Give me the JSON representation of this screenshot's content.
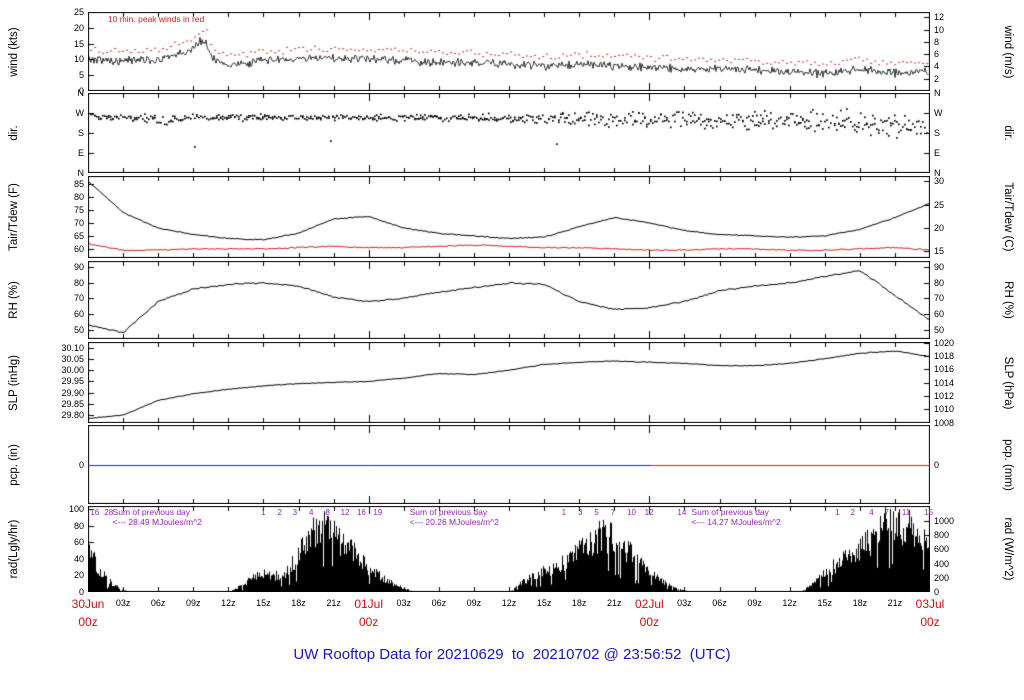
{
  "title": {
    "text": "UW Rooftop Data for 20210629  to  20210702 @ 23:56:52  (UTC)"
  },
  "colors": {
    "title": "#1717bb",
    "axis": "#000000",
    "major_x_label": "#cc1111",
    "annotation_purple": "#9922bb",
    "peak_wind_red": "#cc2222",
    "precip_blue": "#2222cc",
    "precip_red": "#cc2222"
  },
  "x_axis": {
    "hours_total": 72,
    "minor_tick_every_h": 3,
    "minor_labels": [
      {
        "t": "03z",
        "h": 3
      },
      {
        "t": "06z",
        "h": 6
      },
      {
        "t": "09z",
        "h": 9
      },
      {
        "t": "12z",
        "h": 12
      },
      {
        "t": "15z",
        "h": 15
      },
      {
        "t": "18z",
        "h": 18
      },
      {
        "t": "21z",
        "h": 21
      },
      {
        "t": "03z",
        "h": 27
      },
      {
        "t": "06z",
        "h": 30
      },
      {
        "t": "09z",
        "h": 33
      },
      {
        "t": "12z",
        "h": 36
      },
      {
        "t": "15z",
        "h": 39
      },
      {
        "t": "18z",
        "h": 42
      },
      {
        "t": "21z",
        "h": 45
      },
      {
        "t": "03z",
        "h": 51
      },
      {
        "t": "06z",
        "h": 54
      },
      {
        "t": "09z",
        "h": 57
      },
      {
        "t": "12z",
        "h": 60
      },
      {
        "t": "15z",
        "h": 63
      },
      {
        "t": "18z",
        "h": 66
      },
      {
        "t": "21z",
        "h": 69
      }
    ],
    "major_labels": [
      {
        "l1": "30Jun",
        "l2": "00z",
        "h": 0
      },
      {
        "l1": "01Jul",
        "l2": "00z",
        "h": 24
      },
      {
        "l1": "02Jul",
        "l2": "00z",
        "h": 48
      },
      {
        "l1": "03Jul",
        "l2": "00z",
        "h": 72
      }
    ]
  },
  "chart_data": {
    "type": "line",
    "x_range_hours": [
      0,
      72
    ],
    "x_start": "2021-06-30 00z",
    "x_end": "2021-07-03 00z",
    "panels": [
      {
        "id": "wind",
        "top": 12,
        "height": 79,
        "left_label": "wind (kts)",
        "right_label": "wind (m/s)",
        "ylim": [
          0,
          25
        ],
        "left_ticks": [
          {
            "pos": 25,
            "label": "25"
          },
          {
            "pos": 20,
            "label": "20"
          },
          {
            "pos": 15,
            "label": "15"
          },
          {
            "pos": 10,
            "label": "10"
          },
          {
            "pos": 5,
            "label": "5"
          },
          {
            "pos": 0,
            "label": "0"
          }
        ],
        "right_ticks": [
          {
            "pos": 23.33,
            "label": "12"
          },
          {
            "pos": 19.44,
            "label": "10"
          },
          {
            "pos": 15.55,
            "label": "8"
          },
          {
            "pos": 11.66,
            "label": "6"
          },
          {
            "pos": 7.78,
            "label": "4"
          },
          {
            "pos": 3.89,
            "label": "2"
          }
        ],
        "annotations": [
          {
            "text": "10 min. peak winds in red",
            "h": 1.7,
            "color": "#cc2222"
          }
        ],
        "series": [
          {
            "name": "wind-avg",
            "type": "noisy_line",
            "color": "#000000",
            "step_h": 3,
            "noise": 1.6,
            "values": [
              10,
              9.5,
              10,
              13,
              8,
              9.5,
              10,
              10.5,
              10,
              9.5,
              9,
              9,
              8.5,
              8,
              8.5,
              8,
              7.5,
              7,
              7,
              6.5,
              6,
              5.5,
              7,
              5.5,
              6.5
            ],
            "spike": {
              "h": 9.8,
              "w": 0.5,
              "amp": 6
            }
          },
          {
            "name": "wind-peak",
            "type": "dash_line",
            "color": "#cc2222",
            "step_h": 3,
            "noise": 1.2,
            "values": [
              13,
              12.5,
              13,
              16.5,
              11,
              12.5,
              13,
              13.5,
              13,
              12.5,
              12,
              12,
              11.5,
              11,
              11.5,
              11,
              10.5,
              10,
              10,
              9.5,
              9,
              8.5,
              10,
              8.5,
              9.5
            ],
            "spike": {
              "h": 9.8,
              "w": 0.5,
              "amp": 6
            }
          }
        ]
      },
      {
        "id": "dir",
        "top": 93,
        "height": 80,
        "left_label": "dir.",
        "right_label": "dir.",
        "ylim": [
          0,
          360
        ],
        "left_ticks": [
          {
            "pos": 360,
            "label": "N"
          },
          {
            "pos": 270,
            "label": "W"
          },
          {
            "pos": 180,
            "label": "S"
          },
          {
            "pos": 90,
            "label": "E"
          },
          {
            "pos": 0,
            "label": "N"
          }
        ],
        "right_ticks": [
          {
            "pos": 360,
            "label": "N"
          },
          {
            "pos": 270,
            "label": "W"
          },
          {
            "pos": 180,
            "label": "S"
          },
          {
            "pos": 90,
            "label": "E"
          },
          {
            "pos": 0,
            "label": "N"
          }
        ],
        "annotations": [],
        "series": [
          {
            "name": "wind-direction",
            "type": "scatter",
            "color": "#000000",
            "step_h": 3,
            "values": [
              258,
              255,
              238,
              256,
              252,
              250,
              254,
              252,
              250,
              253,
              252,
              250,
              253,
              250,
              248,
              242,
              246,
              244,
              240,
              236,
              240,
              235,
              230,
              215,
              205
            ],
            "spread": [
              10,
              10,
              20,
              8,
              10,
              12,
              10,
              8,
              10,
              10,
              10,
              12,
              14,
              15,
              20,
              28,
              24,
              25,
              25,
              30,
              30,
              35,
              40,
              45,
              50
            ]
          }
        ]
      },
      {
        "id": "temp",
        "top": 176,
        "height": 82,
        "left_label": "Tair/Tdew (F)",
        "right_label": "Tair/Tdew (C)",
        "ylim": [
          56.5,
          88
        ],
        "left_ticks": [
          {
            "pos": 85,
            "label": "85"
          },
          {
            "pos": 80,
            "label": "80"
          },
          {
            "pos": 75,
            "label": "75"
          },
          {
            "pos": 70,
            "label": "70"
          },
          {
            "pos": 65,
            "label": "65"
          },
          {
            "pos": 60,
            "label": "60"
          }
        ],
        "right_ticks": [
          {
            "pos": 86,
            "label": "30"
          },
          {
            "pos": 77,
            "label": "25"
          },
          {
            "pos": 68,
            "label": "20"
          },
          {
            "pos": 59,
            "label": "15"
          }
        ],
        "annotations": [],
        "series": [
          {
            "name": "tair",
            "type": "line",
            "color": "#000000",
            "step_h": 3,
            "noise": 0.25,
            "values": [
              86,
              74,
              68,
              65.5,
              64,
              63.5,
              66,
              71.5,
              72.5,
              68,
              66,
              65,
              64,
              64.5,
              68.5,
              72,
              70,
              67,
              65.5,
              65,
              64.5,
              65,
              67.5,
              72,
              77.5
            ]
          },
          {
            "name": "tdew",
            "type": "line",
            "color": "#cc2222",
            "step_h": 3,
            "noise": 0.3,
            "values": [
              62,
              59.5,
              59.5,
              60,
              60,
              60,
              60.5,
              61,
              60.5,
              60.5,
              61,
              61.5,
              61,
              60.5,
              60.5,
              60,
              59.5,
              59.5,
              60,
              60,
              59.5,
              59.5,
              60,
              60.5,
              59.5
            ]
          }
        ]
      },
      {
        "id": "rh",
        "top": 261,
        "height": 78,
        "left_label": "RH (%)",
        "right_label": "RH (%)",
        "ylim": [
          44,
          94
        ],
        "left_ticks": [
          {
            "pos": 90,
            "label": "90"
          },
          {
            "pos": 80,
            "label": "80"
          },
          {
            "pos": 70,
            "label": "70"
          },
          {
            "pos": 60,
            "label": "60"
          },
          {
            "pos": 50,
            "label": "50"
          }
        ],
        "right_ticks": [
          {
            "pos": 90,
            "label": "90"
          },
          {
            "pos": 80,
            "label": "80"
          },
          {
            "pos": 70,
            "label": "70"
          },
          {
            "pos": 60,
            "label": "60"
          },
          {
            "pos": 50,
            "label": "50"
          }
        ],
        "annotations": [],
        "series": [
          {
            "name": "relative-humidity",
            "type": "line",
            "color": "#000000",
            "step_h": 3,
            "noise": 0.6,
            "values": [
              53,
              48,
              68,
              76,
              79,
              80,
              78,
              71,
              68,
              70,
              74,
              77,
              80,
              79,
              68,
              63,
              64,
              68,
              75,
              78,
              80,
              84,
              88,
              72,
              56
            ]
          }
        ]
      },
      {
        "id": "slp",
        "top": 342,
        "height": 81,
        "left_label": "SLP (inHg)",
        "right_label": "SLP (hPa)",
        "ylim": [
          29.765,
          30.125
        ],
        "left_ticks": [
          {
            "pos": 30.1,
            "label": "30.10"
          },
          {
            "pos": 30.05,
            "label": "30.05"
          },
          {
            "pos": 30.0,
            "label": "30.00"
          },
          {
            "pos": 29.95,
            "label": "29.95"
          },
          {
            "pos": 29.9,
            "label": "29.90"
          },
          {
            "pos": 29.85,
            "label": "29.85"
          },
          {
            "pos": 29.8,
            "label": "29.80"
          }
        ],
        "right_ticks": [
          {
            "pos": 30.121,
            "label": "1020"
          },
          {
            "pos": 30.062,
            "label": "1018"
          },
          {
            "pos": 30.003,
            "label": "1016"
          },
          {
            "pos": 29.944,
            "label": "1014"
          },
          {
            "pos": 29.885,
            "label": "1012"
          },
          {
            "pos": 29.826,
            "label": "1010"
          },
          {
            "pos": 29.767,
            "label": "1008"
          }
        ],
        "annotations": [],
        "series": [
          {
            "name": "sea-level-pressure",
            "type": "line",
            "color": "#000000",
            "step_h": 3,
            "noise": 0.0022,
            "values": [
              29.785,
              29.8,
              29.865,
              29.895,
              29.915,
              29.93,
              29.94,
              29.945,
              29.95,
              29.965,
              29.985,
              29.98,
              30.0,
              30.025,
              30.035,
              30.04,
              30.035,
              30.03,
              30.02,
              30.02,
              30.03,
              30.05,
              30.075,
              30.085,
              30.06
            ]
          }
        ]
      },
      {
        "id": "pcp",
        "top": 425,
        "height": 79,
        "left_label": "pcp. (in)",
        "right_label": "pcp. (mm)",
        "ylim": [
          -1,
          1
        ],
        "left_ticks": [
          {
            "pos": 0,
            "label": "0"
          }
        ],
        "right_ticks": [
          {
            "pos": 0,
            "label": "0"
          }
        ],
        "annotations": [],
        "series": [
          {
            "name": "precip-trace",
            "type": "zero_segments",
            "segments": [
              {
                "from_h": 0,
                "to_h": 48.2,
                "color": "#2222cc"
              },
              {
                "from_h": 48.2,
                "to_h": 72,
                "color": "#cc2222"
              }
            ]
          }
        ]
      },
      {
        "id": "rad",
        "top": 506,
        "height": 86,
        "left_label": "rad(Lgly/hr)",
        "right_label": "rad (W/m^2)",
        "ylim": [
          0,
          104
        ],
        "left_ticks": [
          {
            "pos": 100,
            "label": "100"
          },
          {
            "pos": 80,
            "label": "80"
          },
          {
            "pos": 60,
            "label": "60"
          },
          {
            "pos": 40,
            "label": "40"
          },
          {
            "pos": 20,
            "label": "20"
          },
          {
            "pos": 0,
            "label": "0"
          }
        ],
        "right_ticks": [
          {
            "pos": 86,
            "label": "1000"
          },
          {
            "pos": 68.8,
            "label": "800"
          },
          {
            "pos": 51.6,
            "label": "600"
          },
          {
            "pos": 34.4,
            "label": "400"
          },
          {
            "pos": 17.2,
            "label": "200"
          },
          {
            "pos": 0,
            "label": "0"
          }
        ],
        "annotations": [],
        "counters": [
          {
            "t": "16",
            "h": 0.2
          },
          {
            "t": "28",
            "h": 1.4
          },
          {
            "t": "1",
            "h": 14.8
          },
          {
            "t": "2",
            "h": 16.2
          },
          {
            "t": "3",
            "h": 17.5
          },
          {
            "t": "4",
            "h": 18.9
          },
          {
            "t": "8",
            "h": 20.3
          },
          {
            "t": "12",
            "h": 21.6
          },
          {
            "t": "16",
            "h": 23.0
          },
          {
            "t": "19",
            "h": 24.4
          },
          {
            "t": "1",
            "h": 40.5
          },
          {
            "t": "3",
            "h": 41.9
          },
          {
            "t": "5",
            "h": 43.3
          },
          {
            "t": "7",
            "h": 44.7
          },
          {
            "t": "10",
            "h": 46.1
          },
          {
            "t": "12",
            "h": 47.6
          },
          {
            "t": "14",
            "h": 50.4
          },
          {
            "t": "1",
            "h": 63.9
          },
          {
            "t": "2",
            "h": 65.2
          },
          {
            "t": "4",
            "h": 66.8
          },
          {
            "t": "7",
            "h": 68.1
          },
          {
            "t": "11",
            "h": 69.6
          },
          {
            "t": "15",
            "h": 71.5
          }
        ],
        "sums": [
          {
            "l1": "Sum of previous day",
            "l2": "<--- 28.49 MJoules/m^2",
            "h": 2.1
          },
          {
            "l1": "Sum of previous day",
            "l2": "<--- 20.26 MJoules/m^2",
            "h": 27.5
          },
          {
            "l1": "Sum of previous day",
            "l2": "<--- 14.27 MJoules/m^2",
            "h": 51.6
          }
        ],
        "series": [
          {
            "name": "solar-radiation",
            "type": "solar_fill",
            "color": "#000000",
            "step_h": 1,
            "values": [
              55,
              30,
              12,
              2,
              0,
              0,
              0,
              0,
              0,
              0,
              0,
              0,
              0,
              8,
              18,
              25,
              22,
              28,
              55,
              85,
              95,
              82,
              65,
              48,
              33,
              22,
              12,
              5,
              0,
              0,
              0,
              0,
              0,
              0,
              0,
              0,
              0,
              12,
              22,
              30,
              35,
              45,
              58,
              68,
              78,
              72,
              58,
              42,
              26,
              15,
              7,
              2,
              0,
              0,
              0,
              0,
              0,
              0,
              0,
              0,
              0,
              0,
              12,
              28,
              38,
              48,
              58,
              75,
              92,
              95,
              90,
              86,
              80,
              70
            ]
          }
        ]
      }
    ]
  }
}
